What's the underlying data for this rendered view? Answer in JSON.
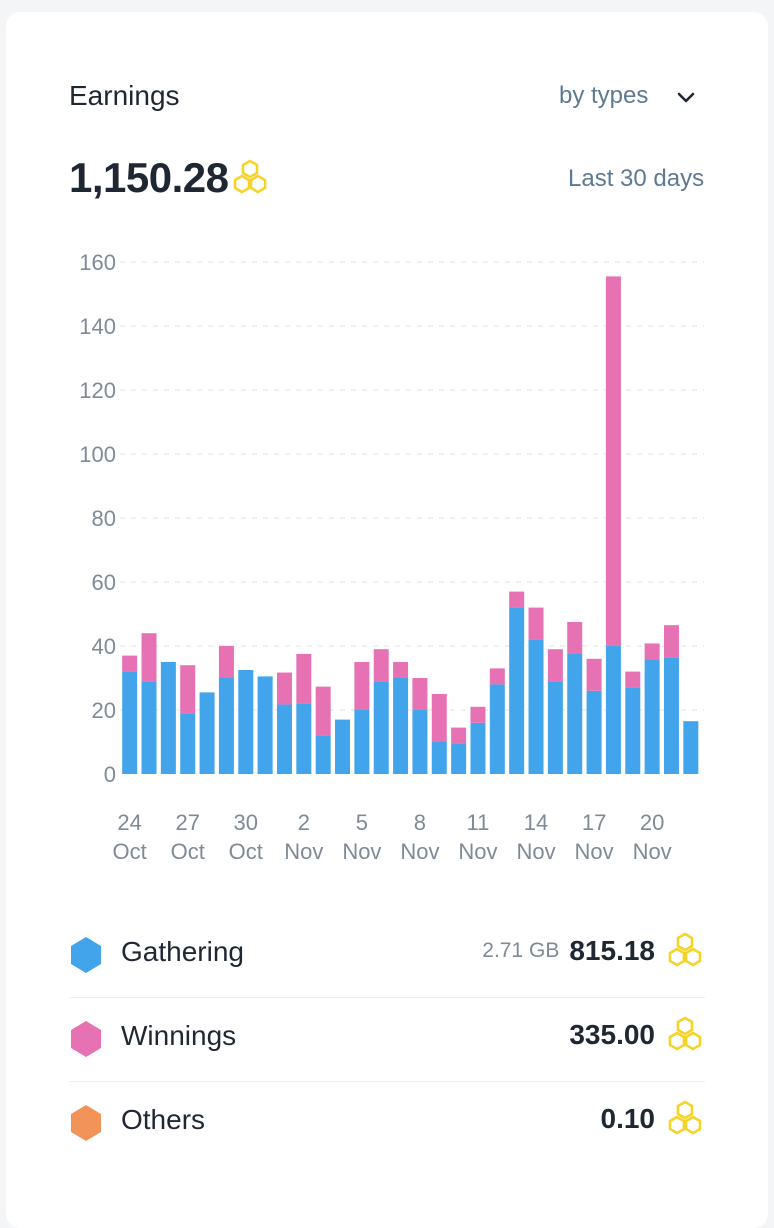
{
  "header": {
    "title": "Earnings",
    "filter_label": "by types",
    "total": "1,150.28",
    "period": "Last 30 days"
  },
  "colors": {
    "gathering": "#42a5ec",
    "winnings": "#e672b4",
    "others": "#f2935a",
    "coin": "#f5d327"
  },
  "chart_data": {
    "type": "bar",
    "stacked": true,
    "ylim": [
      0,
      160
    ],
    "yticks": [
      0,
      20,
      40,
      60,
      80,
      100,
      120,
      140,
      160
    ],
    "grid": true,
    "xticks": [
      {
        "index": 0,
        "day": "24",
        "month": "Oct"
      },
      {
        "index": 3,
        "day": "27",
        "month": "Oct"
      },
      {
        "index": 6,
        "day": "30",
        "month": "Oct"
      },
      {
        "index": 9,
        "day": "2",
        "month": "Nov"
      },
      {
        "index": 12,
        "day": "5",
        "month": "Nov"
      },
      {
        "index": 15,
        "day": "8",
        "month": "Nov"
      },
      {
        "index": 18,
        "day": "11",
        "month": "Nov"
      },
      {
        "index": 21,
        "day": "14",
        "month": "Nov"
      },
      {
        "index": 24,
        "day": "17",
        "month": "Nov"
      },
      {
        "index": 27,
        "day": "20",
        "month": "Nov"
      }
    ],
    "series": [
      {
        "name": "Gathering",
        "values": [
          32,
          29,
          35,
          19,
          25.5,
          30,
          32.5,
          30.5,
          21.7,
          22,
          12,
          17,
          20,
          29,
          30,
          20,
          10,
          9.5,
          16,
          28,
          52,
          42,
          29,
          37.5,
          26,
          40,
          27,
          35.8,
          36.5,
          16.5
        ]
      },
      {
        "name": "Winnings",
        "values": [
          5,
          15,
          0,
          15,
          0,
          10,
          0,
          0,
          10,
          15.5,
          15.3,
          0,
          15,
          10,
          5,
          10,
          15,
          5,
          5,
          5,
          5,
          10,
          10,
          10,
          10,
          115.5,
          5,
          5,
          10,
          0
        ]
      }
    ]
  },
  "legend": [
    {
      "name": "Gathering",
      "size": "2.71 GB",
      "amount": "815.18"
    },
    {
      "name": "Winnings",
      "size": "",
      "amount": "335.00"
    },
    {
      "name": "Others",
      "size": "",
      "amount": "0.10"
    }
  ]
}
